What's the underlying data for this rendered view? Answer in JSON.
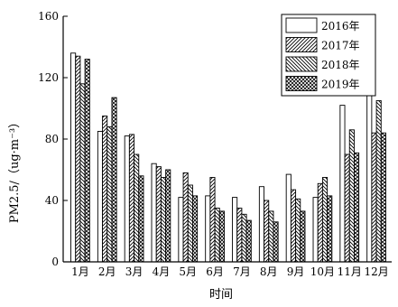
{
  "chart_data": {
    "type": "bar",
    "title": "",
    "xlabel": "时间",
    "ylabel": "PM2.5/（ug·m⁻³）",
    "ylim": [
      0,
      160
    ],
    "yticks": [
      0,
      40,
      80,
      120,
      160
    ],
    "grid": false,
    "legend_position": "top-right",
    "categories": [
      "1月",
      "2月",
      "3月",
      "4月",
      "5月",
      "6月",
      "7月",
      "8月",
      "9月",
      "10月",
      "11月",
      "12月"
    ],
    "series": [
      {
        "name": "2016年",
        "pattern": "open",
        "values": [
          136,
          85,
          82,
          64,
          42,
          43,
          42,
          49,
          57,
          42,
          102,
          144
        ]
      },
      {
        "name": "2017年",
        "pattern": "forward-hatch",
        "values": [
          134,
          95,
          83,
          62,
          58,
          55,
          35,
          40,
          47,
          51,
          70,
          84
        ]
      },
      {
        "name": "2018年",
        "pattern": "back-hatch",
        "values": [
          116,
          88,
          70,
          55,
          50,
          35,
          31,
          33,
          41,
          55,
          86,
          105
        ]
      },
      {
        "name": "2019年",
        "pattern": "crosshatch",
        "values": [
          132,
          107,
          56,
          60,
          43,
          33,
          27,
          26,
          33,
          43,
          71,
          84
        ]
      }
    ]
  }
}
